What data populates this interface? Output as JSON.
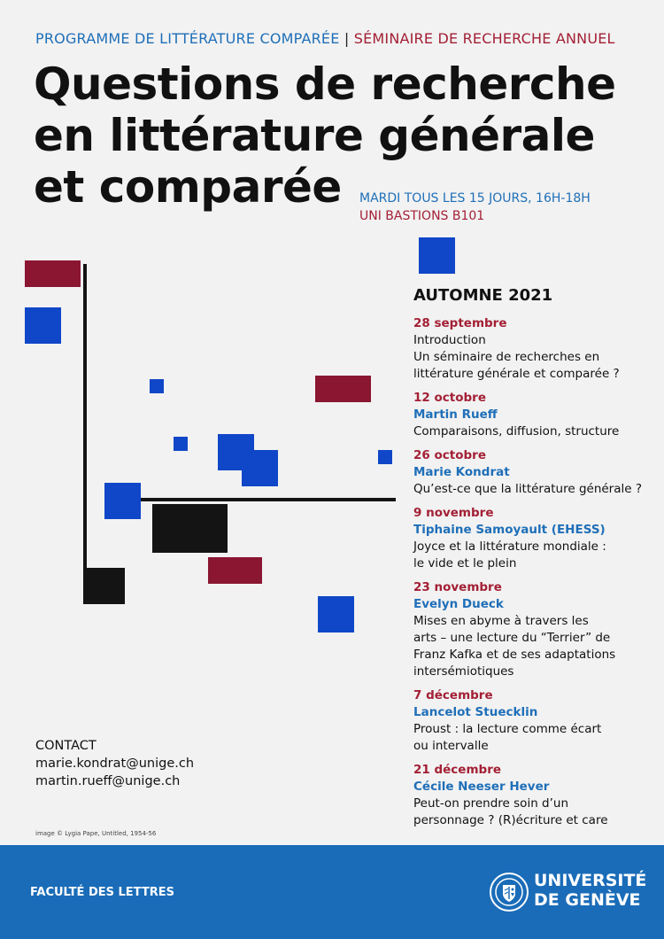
{
  "header": {
    "programme": "PROGRAMME DE LITTÉRATURE COMPARÉE",
    "separator": "|",
    "seminaire": "SÉMINAIRE DE RECHERCHE ANNUEL"
  },
  "title": {
    "line1": "Questions de recherche",
    "line2": "en littérature générale",
    "line3": "et comparée"
  },
  "schedule": {
    "when": "MARDI TOUS LES 15 JOURS, 16H-18H",
    "where": "UNI BASTIONS B101"
  },
  "season": "AUTOMNE 2021",
  "events": [
    {
      "date": "28 septembre",
      "speaker": "",
      "talk_lines": [
        "Introduction",
        "Un séminaire de recherches en",
        "littérature générale et comparée ?"
      ]
    },
    {
      "date": "12 octobre",
      "speaker": "Martin Rueff",
      "talk_lines": [
        "Comparaisons, diffusion, structure"
      ]
    },
    {
      "date": "26 octobre",
      "speaker": "Marie Kondrat",
      "talk_lines": [
        "Qu’est-ce que la littérature générale ?"
      ]
    },
    {
      "date": "9 novembre",
      "speaker": "Tiphaine Samoyault (EHESS)",
      "talk_lines": [
        "Joyce et la littérature mondiale :",
        "le vide et le plein"
      ]
    },
    {
      "date": "23 novembre",
      "speaker": "Evelyn Dueck",
      "talk_lines": [
        "Mises en abyme à travers les",
        "arts – une lecture du “Terrier” de",
        "Franz Kafka et de ses adaptations",
        "intersémiotiques"
      ]
    },
    {
      "date": "7 décembre",
      "speaker": "Lancelot Stuecklin",
      "talk_lines": [
        "Proust : la lecture comme écart",
        "ou intervalle"
      ]
    },
    {
      "date": "21 décembre",
      "speaker": "Cécile Neeser Hever",
      "talk_lines": [
        "Peut-on prendre soin d’un",
        "personnage ? (R)écriture et care"
      ]
    }
  ],
  "contact": {
    "label": "CONTACT",
    "email1": "marie.kondrat@unige.ch",
    "email2": "martin.rueff@unige.ch"
  },
  "credit": "image © Lygia Pape, Untitled, 1954-56",
  "footer": {
    "faculty": "FACULTÉ DES LETTRES",
    "uni_line1": "UNIVERSITÉ",
    "uni_line2": "DE GENÈVE",
    "seal_icon": "university-seal-icon"
  },
  "colors": {
    "blue": "#1f6fb8",
    "red": "#a32035",
    "footer": "#1a6cb8"
  }
}
